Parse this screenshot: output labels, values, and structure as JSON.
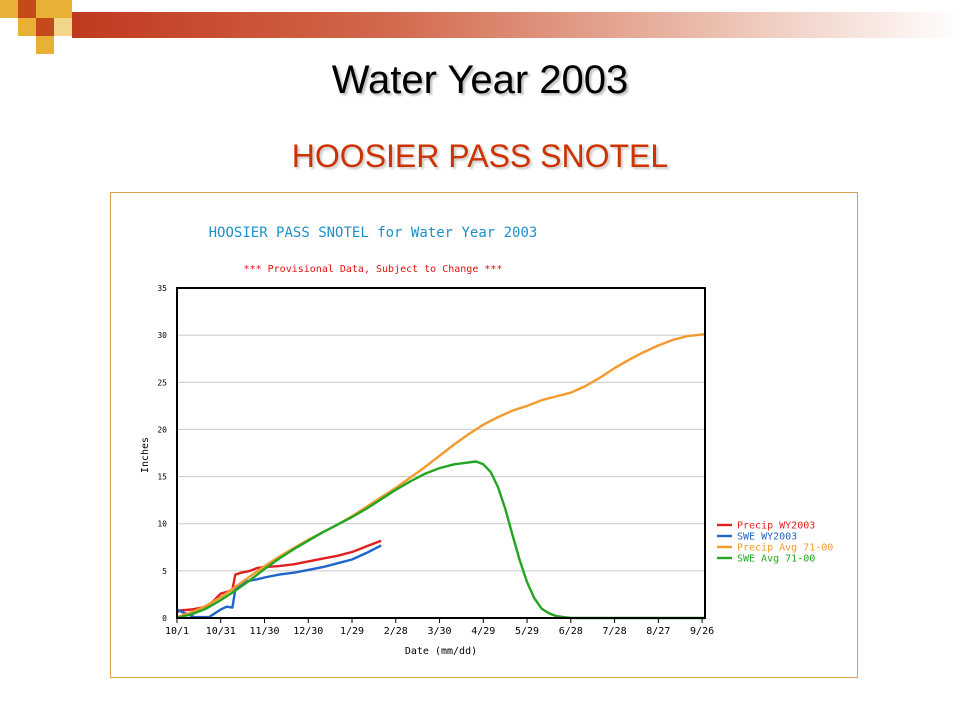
{
  "slide": {
    "title": "Water Year 2003",
    "subtitle": "HOOSIER PASS SNOTEL"
  },
  "colors": {
    "deco_orange": "#e8b035",
    "deco_red": "#c44a1c",
    "bar_start": "#c0391f",
    "subtitle": "#cc3300",
    "frame": "#d7a24a",
    "chart_title": "#1e90c8",
    "chart_subtitle": "#e01010"
  },
  "chart_data": {
    "type": "line",
    "title": "HOOSIER PASS SNOTEL for Water Year 2003",
    "subtitle": "*** Provisional Data, Subject to Change ***",
    "xlabel": "Date (mm/dd)",
    "ylabel": "Inches",
    "xlim": [
      0,
      362
    ],
    "ylim": [
      0,
      35
    ],
    "grid": true,
    "legend_position": "right",
    "x_ticks": [
      {
        "x": 0,
        "label": "10/1"
      },
      {
        "x": 30,
        "label": "10/31"
      },
      {
        "x": 60,
        "label": "11/30"
      },
      {
        "x": 90,
        "label": "12/30"
      },
      {
        "x": 120,
        "label": "1/29"
      },
      {
        "x": 150,
        "label": "2/28"
      },
      {
        "x": 180,
        "label": "3/30"
      },
      {
        "x": 210,
        "label": "4/29"
      },
      {
        "x": 240,
        "label": "5/29"
      },
      {
        "x": 270,
        "label": "6/28"
      },
      {
        "x": 300,
        "label": "7/28"
      },
      {
        "x": 330,
        "label": "8/27"
      },
      {
        "x": 360,
        "label": "9/26"
      }
    ],
    "y_ticks": [
      0,
      5,
      10,
      15,
      20,
      25,
      30,
      35
    ],
    "series": [
      {
        "name": "Precip WY2003",
        "color": "#e02020",
        "points": [
          [
            0,
            0.6
          ],
          [
            2,
            0.8
          ],
          [
            10,
            0.9
          ],
          [
            20,
            1.2
          ],
          [
            25,
            1.8
          ],
          [
            30,
            2.6
          ],
          [
            35,
            2.8
          ],
          [
            38,
            3.0
          ],
          [
            40,
            4.6
          ],
          [
            44,
            4.8
          ],
          [
            50,
            5.0
          ],
          [
            55,
            5.3
          ],
          [
            60,
            5.4
          ],
          [
            70,
            5.5
          ],
          [
            80,
            5.7
          ],
          [
            90,
            6.0
          ],
          [
            100,
            6.3
          ],
          [
            110,
            6.6
          ],
          [
            120,
            7.0
          ],
          [
            125,
            7.3
          ],
          [
            130,
            7.6
          ],
          [
            135,
            7.9
          ],
          [
            140,
            8.2
          ]
        ]
      },
      {
        "name": "SWE WY2003",
        "color": "#1f64c8",
        "points": [
          [
            0,
            0.9
          ],
          [
            4,
            0.6
          ],
          [
            12,
            0.1
          ],
          [
            22,
            0.1
          ],
          [
            26,
            0.5
          ],
          [
            30,
            0.9
          ],
          [
            34,
            1.2
          ],
          [
            38,
            1.1
          ],
          [
            40,
            3.0
          ],
          [
            44,
            3.5
          ],
          [
            48,
            3.9
          ],
          [
            55,
            4.1
          ],
          [
            60,
            4.3
          ],
          [
            70,
            4.6
          ],
          [
            80,
            4.8
          ],
          [
            90,
            5.1
          ],
          [
            100,
            5.4
          ],
          [
            110,
            5.8
          ],
          [
            120,
            6.2
          ],
          [
            130,
            6.9
          ],
          [
            135,
            7.3
          ],
          [
            140,
            7.7
          ]
        ]
      },
      {
        "name": "Precip Avg 71-00",
        "color": "#f39a2c",
        "points": [
          [
            0,
            0.1
          ],
          [
            10,
            0.6
          ],
          [
            20,
            1.3
          ],
          [
            30,
            2.2
          ],
          [
            40,
            3.3
          ],
          [
            50,
            4.4
          ],
          [
            60,
            5.5
          ],
          [
            70,
            6.5
          ],
          [
            80,
            7.4
          ],
          [
            90,
            8.3
          ],
          [
            100,
            9.1
          ],
          [
            110,
            9.9
          ],
          [
            120,
            10.8
          ],
          [
            130,
            11.8
          ],
          [
            140,
            12.8
          ],
          [
            150,
            13.8
          ],
          [
            160,
            14.9
          ],
          [
            170,
            16.0
          ],
          [
            180,
            17.2
          ],
          [
            190,
            18.4
          ],
          [
            200,
            19.5
          ],
          [
            210,
            20.5
          ],
          [
            220,
            21.3
          ],
          [
            230,
            22.0
          ],
          [
            240,
            22.5
          ],
          [
            250,
            23.1
          ],
          [
            260,
            23.5
          ],
          [
            270,
            23.9
          ],
          [
            280,
            24.6
          ],
          [
            290,
            25.5
          ],
          [
            300,
            26.5
          ],
          [
            310,
            27.4
          ],
          [
            320,
            28.2
          ],
          [
            330,
            28.9
          ],
          [
            340,
            29.5
          ],
          [
            350,
            29.9
          ],
          [
            362,
            30.1
          ]
        ]
      },
      {
        "name": "SWE Avg 71-00",
        "color": "#22a622",
        "points": [
          [
            0,
            0.0
          ],
          [
            10,
            0.4
          ],
          [
            20,
            1.0
          ],
          [
            30,
            1.9
          ],
          [
            40,
            2.9
          ],
          [
            50,
            4.0
          ],
          [
            60,
            5.2
          ],
          [
            70,
            6.3
          ],
          [
            80,
            7.3
          ],
          [
            90,
            8.2
          ],
          [
            100,
            9.1
          ],
          [
            110,
            9.9
          ],
          [
            120,
            10.7
          ],
          [
            130,
            11.6
          ],
          [
            140,
            12.6
          ],
          [
            150,
            13.6
          ],
          [
            160,
            14.5
          ],
          [
            170,
            15.3
          ],
          [
            180,
            15.9
          ],
          [
            190,
            16.3
          ],
          [
            200,
            16.5
          ],
          [
            205,
            16.6
          ],
          [
            210,
            16.3
          ],
          [
            215,
            15.5
          ],
          [
            220,
            13.9
          ],
          [
            225,
            11.6
          ],
          [
            230,
            8.8
          ],
          [
            235,
            6.1
          ],
          [
            240,
            3.8
          ],
          [
            245,
            2.1
          ],
          [
            250,
            1.0
          ],
          [
            255,
            0.5
          ],
          [
            260,
            0.2
          ],
          [
            265,
            0.1
          ],
          [
            270,
            0.0
          ],
          [
            362,
            0.0
          ]
        ]
      }
    ]
  }
}
